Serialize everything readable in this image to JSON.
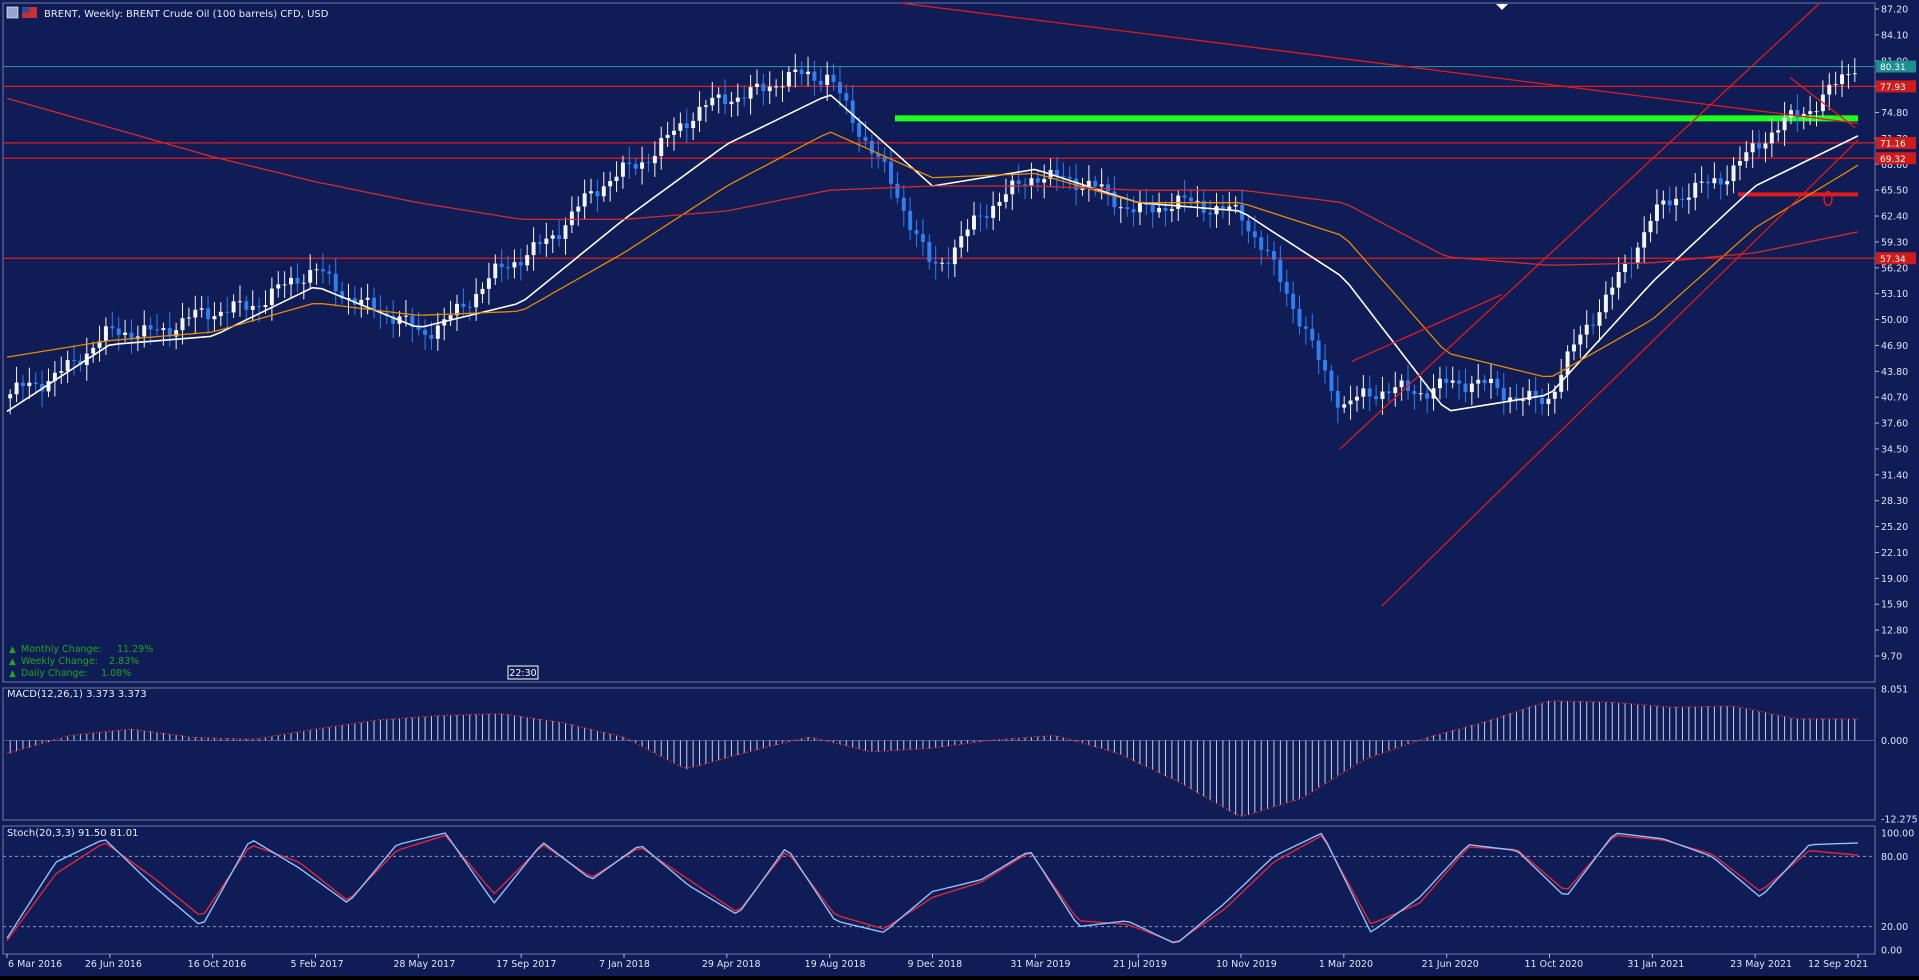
{
  "header": {
    "symbol": "BRENT",
    "title": "BRENT, Weekly:  BRENT Crude Oil (100 barrels) CFD, USD"
  },
  "colors": {
    "background": "#0f1c55",
    "bull_candle": "#f2f6ff",
    "bear_candle": "#2f7ff0",
    "ma_fast": "#ffffff",
    "ma_mid": "#e68a00",
    "ma_slow": "#d42b2b",
    "level_lines": "#e11b1b",
    "support_zone": "#1dff1d",
    "signal_line": "#e0263c",
    "stoch_main": "#8fc3ff",
    "grid": "#ffffff",
    "change_text": "#1fa51f"
  },
  "stats": [
    {
      "label": "Monthly Change:",
      "value": "11.29%"
    },
    {
      "label": "Weekly Change:",
      "value": "2.83%"
    },
    {
      "label": "Daily Change:",
      "value": "1.08%"
    }
  ],
  "time_marker": "22:30",
  "price_tags": {
    "current": "80.31",
    "levels": [
      "77.93",
      "71.16",
      "69.32",
      "57.34"
    ]
  },
  "main_axis_labels": [
    "87.20",
    "84.10",
    "81.00",
    "77.90",
    "74.80",
    "71.70",
    "68.60",
    "65.50",
    "62.40",
    "59.30",
    "56.20",
    "53.10",
    "50.00",
    "46.90",
    "43.80",
    "40.70",
    "37.60",
    "34.50",
    "31.40",
    "28.30",
    "25.20",
    "22.10",
    "19.00",
    "15.90",
    "12.80",
    "9.70"
  ],
  "macd": {
    "label": "MACD(12,26,1) 3.373 3.373",
    "axis": [
      "8.051",
      "0.000",
      "-12.275"
    ]
  },
  "stoch": {
    "label": "Stoch(20,3,3) 91.50 81.01",
    "axis": [
      "100.00",
      "80.00",
      "20.00",
      "0.00"
    ]
  },
  "x_axis_labels": [
    "6 Mar 2016",
    "26 Jun 2016",
    "16 Oct 2016",
    "5 Feb 2017",
    "28 May 2017",
    "17 Sep 2017",
    "7 Jan 2018",
    "29 Apr 2018",
    "19 Aug 2018",
    "9 Dec 2018",
    "31 Mar 2019",
    "21 Jul 2019",
    "10 Nov 2019",
    "1 Mar 2020",
    "21 Jun 2020",
    "11 Oct 2020",
    "31 Jan 2021",
    "23 May 2021",
    "12 Sep 2021"
  ],
  "chart_data": {
    "type": "line",
    "title": "BRENT, Weekly:  BRENT Crude Oil (100 barrels) CFD, USD",
    "xlabel": "",
    "ylabel": "",
    "ylim": [
      7.7,
      88.3
    ],
    "x_range": [
      "6 Mar 2016",
      "12 Sep 2021"
    ],
    "grid": false,
    "x": [
      "6 Mar 2016",
      "26 Jun 2016",
      "16 Oct 2016",
      "5 Feb 2017",
      "28 May 2017",
      "17 Sep 2017",
      "7 Jan 2018",
      "29 Apr 2018",
      "19 Aug 2018",
      "9 Dec 2018",
      "31 Mar 2019",
      "21 Jul 2019",
      "10 Nov 2019",
      "1 Mar 2020",
      "21 Jun 2020",
      "11 Oct 2020",
      "31 Jan 2021",
      "23 May 2021",
      "12 Sep 2021"
    ],
    "series": [
      {
        "name": "",
        "style": "candles",
        "values": [
          40.5,
          48.0,
          50.5,
          55.5,
          48.0,
          57.5,
          68.0,
          77.0,
          79.5,
          56.5,
          68.0,
          63.5,
          63.5,
          40.0,
          42.5,
          40.5,
          62.0,
          70.0,
          80.3
        ]
      },
      {
        "name": "",
        "style": "ma_white",
        "values": [
          39.0,
          47.0,
          48.0,
          54.0,
          49.0,
          52.0,
          62.0,
          71.0,
          77.0,
          66.0,
          68.0,
          64.0,
          63.0,
          55.0,
          39.0,
          41.0,
          54.5,
          66.0,
          72.0
        ]
      },
      {
        "name": "",
        "style": "ma_orange",
        "values": [
          45.5,
          47.5,
          48.5,
          52.0,
          50.5,
          51.0,
          58.0,
          66.0,
          72.5,
          67.0,
          67.5,
          64.0,
          64.0,
          60.0,
          46.0,
          43.0,
          50.0,
          61.0,
          68.5
        ]
      },
      {
        "name": "",
        "style": "ma_red",
        "values": [
          76.5,
          73.0,
          69.5,
          66.5,
          64.0,
          62.0,
          62.0,
          63.0,
          65.5,
          66.0,
          66.0,
          65.5,
          65.5,
          64.0,
          57.5,
          56.5,
          56.8,
          58.0,
          60.5
        ]
      }
    ],
    "horizontal_levels": [
      80.3,
      77.93,
      71.16,
      69.32,
      57.34
    ],
    "support_zone": 74.1,
    "resistance_marker": 65.0,
    "trendlines": [
      {
        "kind": "descending",
        "from": [
          "2018-11",
          88.5
        ],
        "to": [
          "2021-09",
          73.5
        ]
      },
      {
        "kind": "channel-upper",
        "from": [
          "2020-04",
          34.5
        ],
        "to": [
          "2021-08",
          88.5
        ]
      },
      {
        "kind": "channel-lower",
        "from": [
          "2020-04",
          15.7
        ],
        "to": [
          "2021-09",
          71.5
        ]
      }
    ],
    "indicators": {
      "macd": {
        "period": "12,26,1",
        "value": 3.373,
        "range": [
          -12.275,
          8.051
        ],
        "profile": [
          -2,
          0.8,
          1.8,
          0.5,
          0.2,
          1.8,
          3.2,
          3.9,
          4.2,
          2.8,
          0.5,
          -4.5,
          -1.8,
          0.6,
          -1.8,
          -1.2,
          0.1,
          0.8,
          -2.0,
          -6.5,
          -12,
          -9,
          -3,
          0.4,
          3.0,
          6.2,
          6.0,
          5.2,
          5.4,
          3.4,
          3.373
        ]
      },
      "stochastic": {
        "period": "20,3,3",
        "main": 91.5,
        "signal": 81.01,
        "levels": [
          20,
          80
        ],
        "main_series": [
          10,
          75,
          95,
          55,
          20,
          95,
          70,
          40,
          90,
          100,
          40,
          92,
          60,
          90,
          55,
          30,
          88,
          25,
          15,
          50,
          60,
          85,
          20,
          25,
          5,
          40,
          80,
          100,
          15,
          45,
          90,
          85,
          45,
          100,
          95,
          80,
          45,
          90,
          91.5
        ],
        "signal_series": [
          8,
          65,
          92,
          62,
          28,
          90,
          75,
          42,
          85,
          98,
          48,
          90,
          62,
          88,
          60,
          32,
          85,
          30,
          18,
          45,
          58,
          84,
          25,
          22,
          6,
          35,
          75,
          98,
          22,
          40,
          88,
          86,
          50,
          98,
          94,
          82,
          50,
          85,
          81.01
        ]
      }
    }
  }
}
